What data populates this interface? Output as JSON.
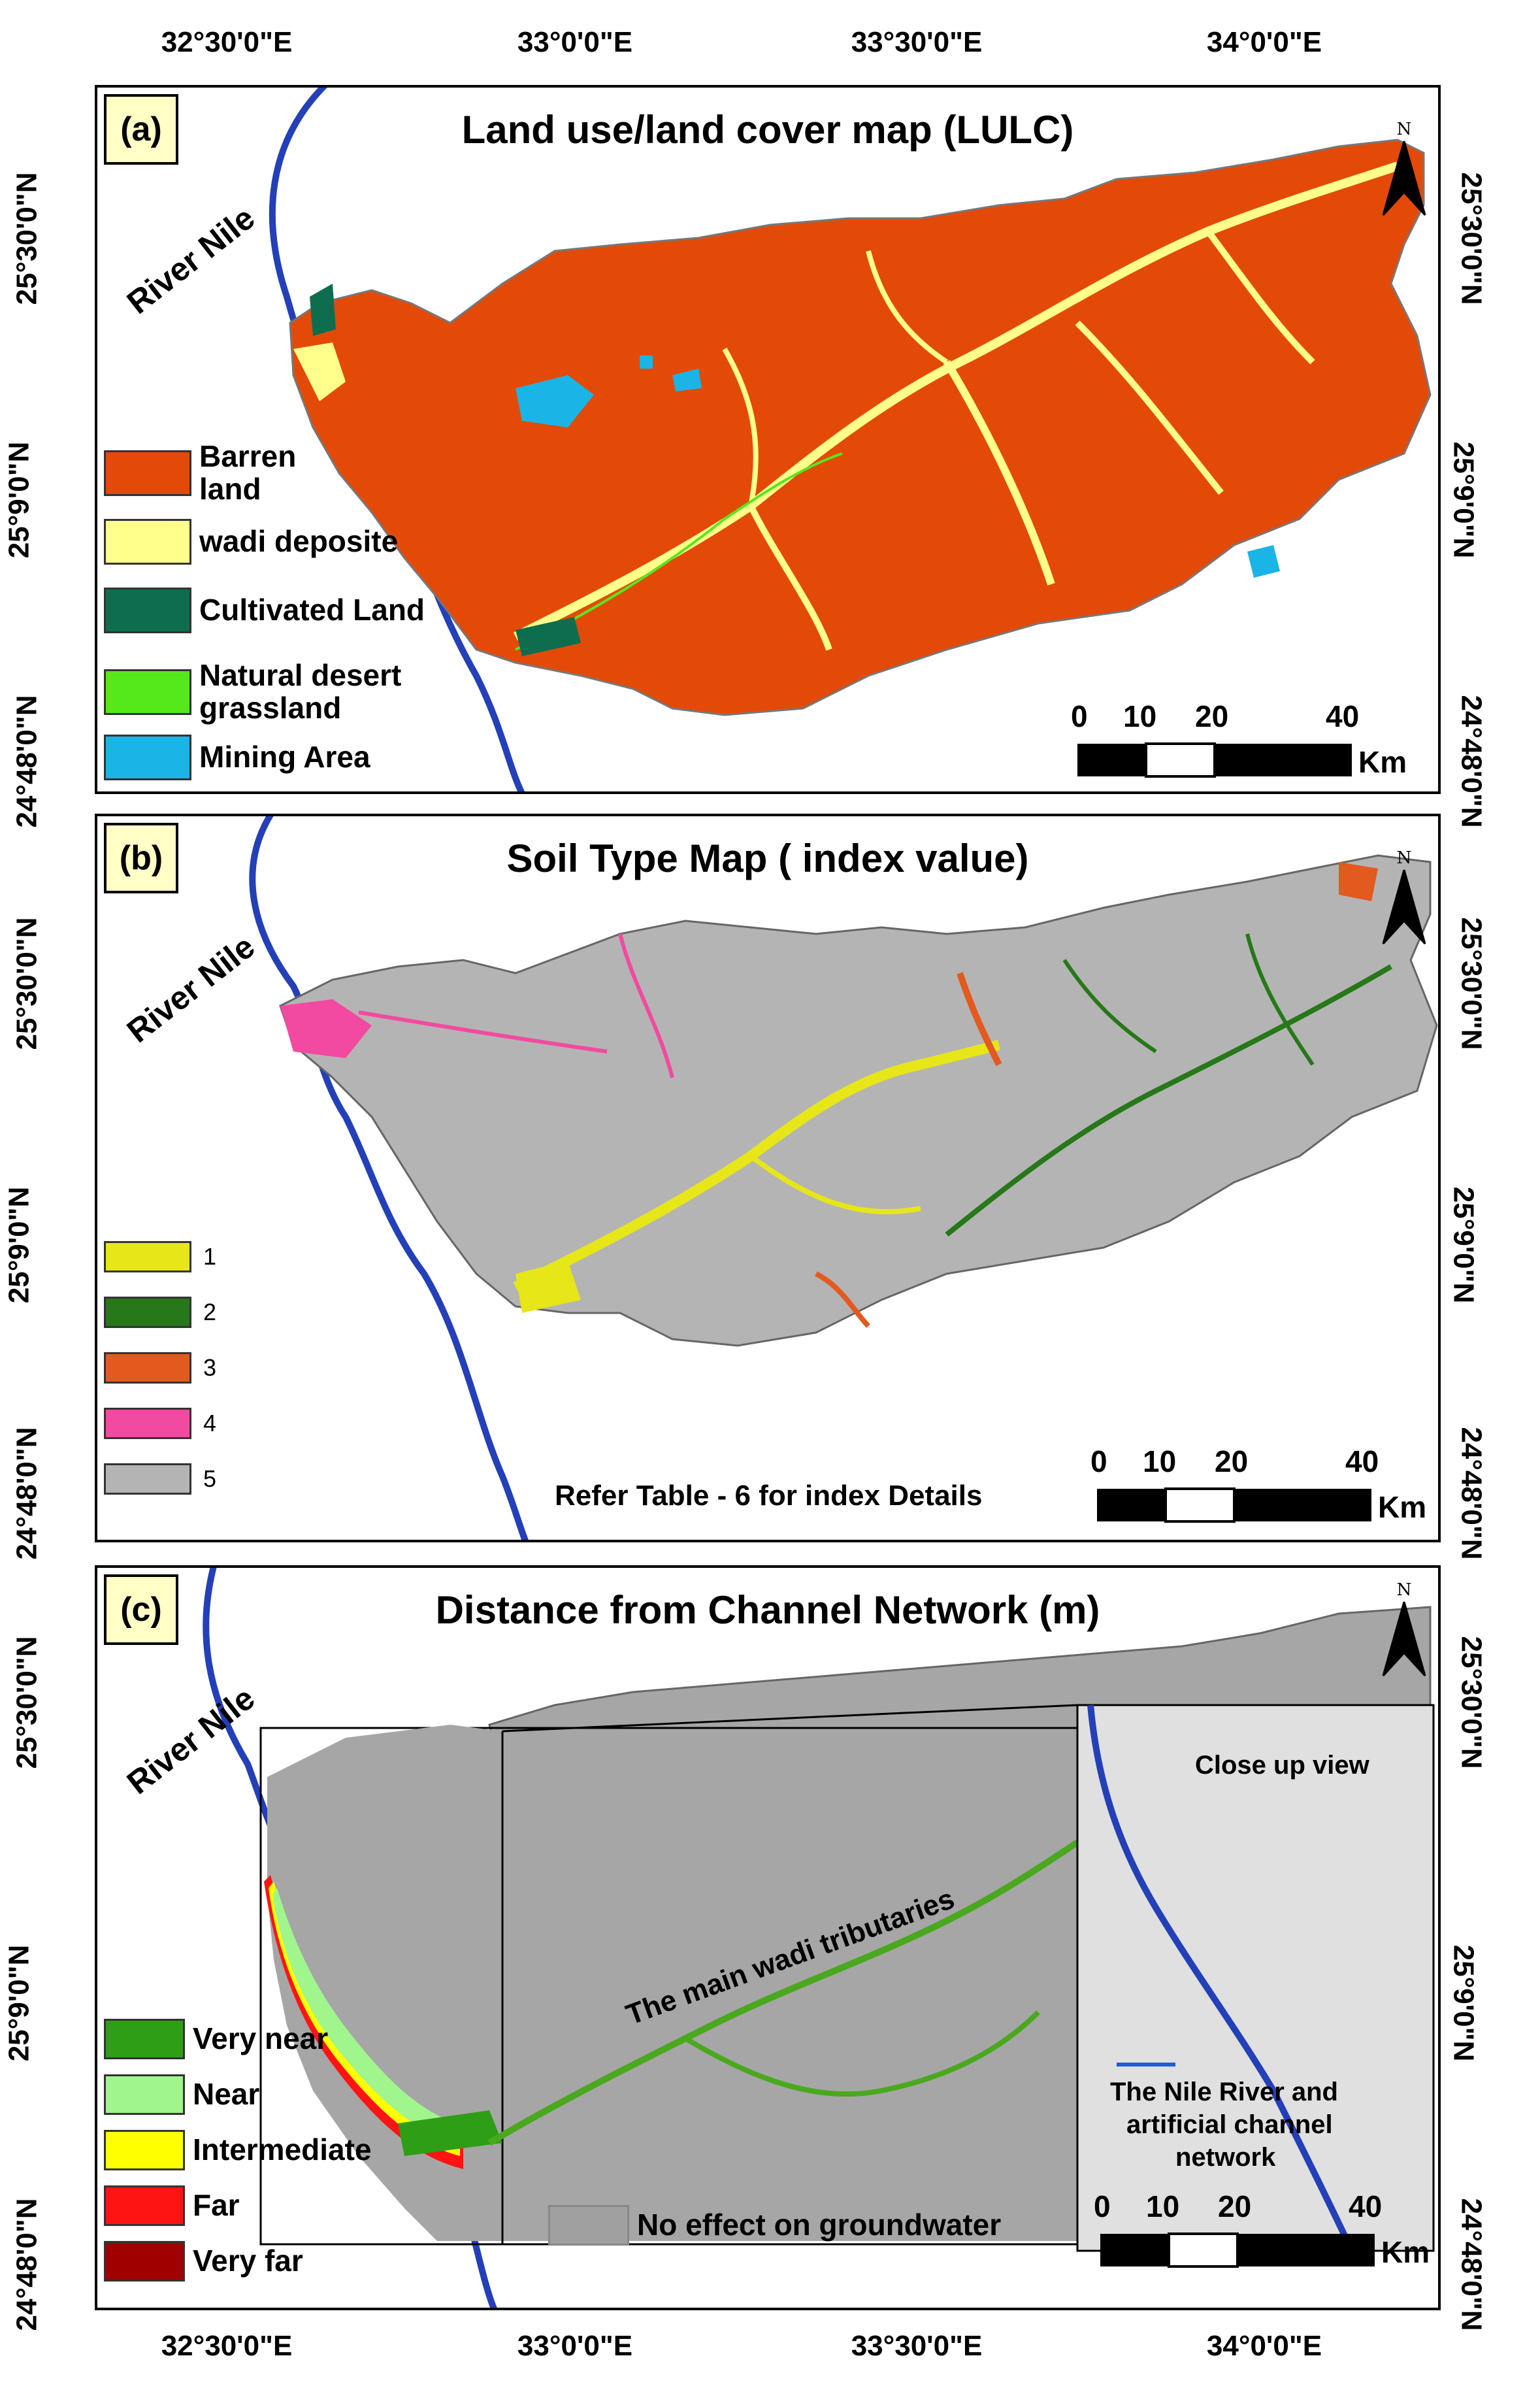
{
  "axes": {
    "top_ticks": [
      "32°30'0\"E",
      "33°0'0\"E",
      "33°30'0\"E",
      "34°0'0\"E"
    ],
    "bottom_ticks": [
      "32°30'0\"E",
      "33°0'0\"E",
      "33°30'0\"E",
      "34°0'0\"E"
    ],
    "left_ticks_a": [
      "25°30'0\"N",
      "25°9'0\"N",
      "24°48'0\"N"
    ],
    "left_ticks_b": [
      "25°30'0\"N",
      "25°9'0\"N",
      "24°48'0\"N"
    ],
    "left_ticks_c": [
      "25°30'0\"N",
      "25°9'0\"N",
      "24°48'0\"N"
    ],
    "right_ticks_a": [
      "25°30'0\"N",
      "25°9'0\"N",
      "24°48'0\"N"
    ],
    "right_ticks_b": [
      "25°30'0\"N",
      "25°9'0\"N",
      "24°48'0\"N"
    ],
    "right_ticks_c": [
      "25°30'0\"N",
      "25°9'0\"N",
      "24°48'0\"N"
    ]
  },
  "north_arrow_label": "N",
  "river_label": "River Nile",
  "scale_bar": {
    "ticks": [
      "0",
      "10",
      "20",
      "40"
    ],
    "unit": "Km"
  },
  "panel_a": {
    "label": "(a)",
    "title": "Land use/land cover map (LULC)",
    "legend": [
      {
        "label_line1": "Barren",
        "label_line2": "land",
        "color": "#e34a07"
      },
      {
        "label_line1": "wadi deposite",
        "label_line2": "",
        "color": "#ffff8c"
      },
      {
        "label_line1": "Cultivated Land",
        "label_line2": "",
        "color": "#0e6d4f"
      },
      {
        "label_line1": "Natural desert",
        "label_line2": "grassland",
        "color": "#55e81a"
      },
      {
        "label_line1": "Mining Area",
        "label_line2": "",
        "color": "#1ab4e6"
      }
    ]
  },
  "panel_b": {
    "label": "(b)",
    "title": "Soil Type Map ( index value)",
    "legend": [
      {
        "label": "1",
        "color": "#e6e619"
      },
      {
        "label": "2",
        "color": "#267818"
      },
      {
        "label": "3",
        "color": "#e35a1e"
      },
      {
        "label": "4",
        "color": "#f24aa0"
      },
      {
        "label": "5",
        "color": "#b4b4b4"
      }
    ],
    "note": "Refer Table - 6  for index Details"
  },
  "panel_c": {
    "label": "(c)",
    "title": "Distance from Channel Network (m)",
    "legend": [
      {
        "label": "Very near",
        "color": "#2e9e16"
      },
      {
        "label": "Near",
        "color": "#a0f58c"
      },
      {
        "label": "Intermediate",
        "color": "#ffff00"
      },
      {
        "label": "Far",
        "color": "#ff1414"
      },
      {
        "label": "Very far",
        "color": "#a00000"
      }
    ],
    "no_effect_label": "No effect on groundwater",
    "no_effect_color": "#a0a0a0",
    "tributaries_label": "The main wadi tributaries",
    "closeup_label": "Close up view",
    "inset_caption": [
      "The Nile River and",
      "artificial channel",
      "network"
    ]
  },
  "colors": {
    "river": "#2440b8",
    "basin_gray": "#a6a6a6",
    "closeup_bg": "#e0e0e0",
    "channel_green": "#4aa81e"
  }
}
